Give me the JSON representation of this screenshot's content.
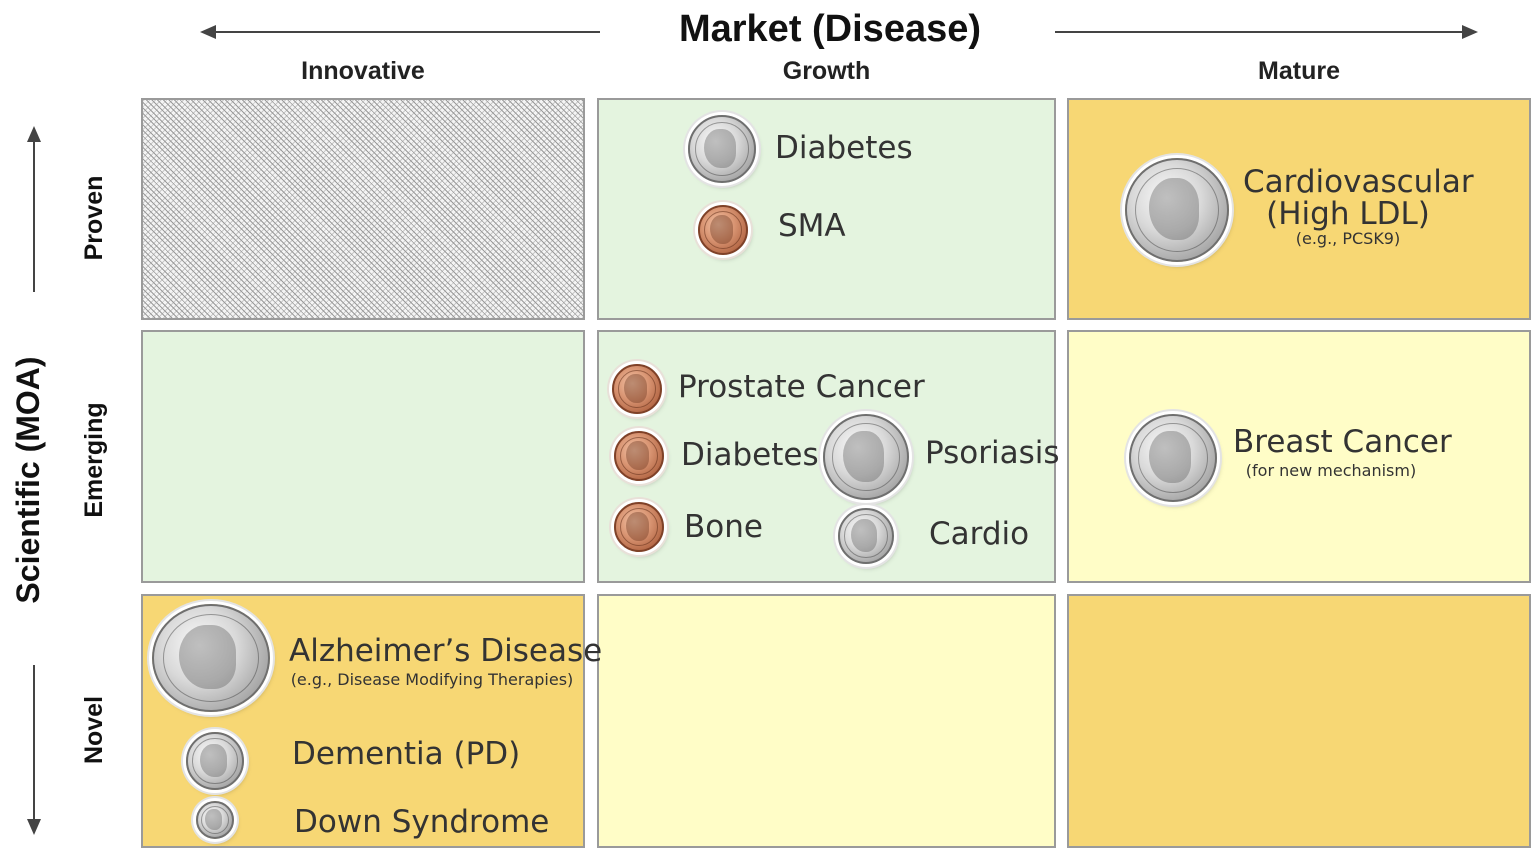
{
  "title": "Market (Disease)",
  "x_axis": {
    "direction": "horizontal",
    "columns": [
      "Innovative",
      "Growth",
      "Mature"
    ]
  },
  "y_axis": {
    "label": "Scientific (MOA)",
    "rows": [
      "Proven",
      "Emerging",
      "Novel"
    ]
  },
  "colors": {
    "light_green": "#e4f4df",
    "light_yellow": "#fffdc7",
    "gold": "#f7d774",
    "hatched": "#b5b5b5",
    "cell_border": "#9a9a9a"
  },
  "cells": {
    "proven_innovative": {
      "fill": "hatched",
      "items": []
    },
    "proven_growth": {
      "fill": "light_green",
      "items": [
        {
          "label": "Diabetes",
          "coin": "dime"
        },
        {
          "label": "SMA",
          "coin": "penny"
        }
      ]
    },
    "proven_mature": {
      "fill": "gold",
      "items": [
        {
          "label_line1": "Cardiovascular",
          "label_line2": "(High LDL)",
          "note": "(e.g., PCSK9)",
          "coin": "quarter"
        }
      ]
    },
    "emerging_innovative": {
      "fill": "light_green",
      "items": []
    },
    "emerging_growth": {
      "fill": "light_green",
      "items": [
        {
          "label": "Prostate Cancer",
          "coin": "penny"
        },
        {
          "label": "Diabetes",
          "coin": "penny"
        },
        {
          "label": "Bone",
          "coin": "penny"
        },
        {
          "label": "Psoriasis",
          "coin": "dime"
        },
        {
          "label": "Cardio",
          "coin": "nickel"
        }
      ]
    },
    "emerging_mature": {
      "fill": "light_yellow",
      "items": [
        {
          "label": "Breast Cancer",
          "note": "(for new mechanism)",
          "coin": "dime"
        }
      ]
    },
    "novel_innovative": {
      "fill": "gold",
      "items": [
        {
          "label": "Alzheimer’s Disease",
          "note": "(e.g., Disease Modifying Therapies)",
          "coin": "half-dollar"
        },
        {
          "label": "Dementia (PD)",
          "coin": "dime"
        },
        {
          "label": "Down Syndrome",
          "coin": "nickel"
        }
      ]
    },
    "novel_growth": {
      "fill": "light_yellow",
      "items": []
    },
    "novel_mature": {
      "fill": "gold",
      "items": []
    }
  }
}
